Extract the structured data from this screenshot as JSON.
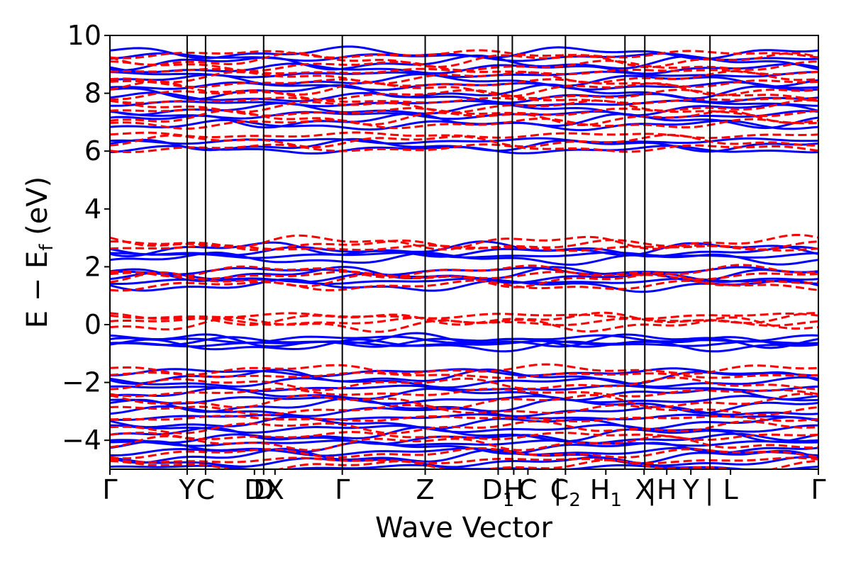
{
  "chart_data": {
    "type": "line",
    "title": "",
    "xlabel": "Wave Vector",
    "ylabel_main": "E − E",
    "ylabel_sub": "f",
    "ylabel_unit": " (eV)",
    "ylim": [
      -5,
      10
    ],
    "yticks": [
      -4,
      -2,
      0,
      2,
      4,
      6,
      8,
      10
    ],
    "ytick_labels": [
      "−4",
      "−2",
      "0",
      "2",
      "4",
      "6",
      "8",
      "10"
    ],
    "kpath": [
      {
        "label": "Γ",
        "x": 0.0
      },
      {
        "label": "Y",
        "x": 0.109
      },
      {
        "label": "C",
        "x": 0.135
      },
      {
        "label": "D",
        "x": 0.204
      },
      {
        "label": "D",
        "x": 0.217
      },
      {
        "label": "X",
        "x": 0.233
      },
      {
        "label": "Γ",
        "x": 0.328
      },
      {
        "label": "Z",
        "x": 0.445
      },
      {
        "label": "D",
        "x": 0.548,
        "sub": "1"
      },
      {
        "label": "H",
        "x": 0.57
      },
      {
        "label": "C",
        "x": 0.59
      },
      {
        "label": "C",
        "x": 0.643,
        "sub": "2"
      },
      {
        "label": "H",
        "x": 0.7,
        "sub": "1"
      },
      {
        "label": "X",
        "x": 0.754
      },
      {
        "label": "H",
        "x": 0.786
      },
      {
        "label": "Y",
        "x": 0.82
      },
      {
        "label": "L",
        "x": 0.876
      },
      {
        "label": "Γ",
        "x": 1.0
      }
    ],
    "kpath_separators": [
      {
        "x": 0.632,
        "text": "|"
      },
      {
        "x": 0.765,
        "text": "|"
      },
      {
        "x": 0.846,
        "text": "|"
      }
    ],
    "vertical_lines_x": [
      0.109,
      0.135,
      0.217,
      0.328,
      0.445,
      0.548,
      0.568,
      0.643,
      0.727,
      0.755,
      0.847
    ],
    "series": [
      {
        "style": "solid",
        "color": "#0000ff",
        "band_levels": [
          -4.95,
          -4.75,
          -4.55,
          -4.4,
          -4.25,
          -4.1,
          -3.95,
          -3.8,
          -3.6,
          -3.4,
          -3.2,
          -3.0,
          -2.8,
          -2.6,
          -2.4,
          -2.2,
          -2.0,
          -1.8,
          -1.65,
          -0.72,
          -0.66,
          -0.6,
          -0.55,
          -0.5,
          1.35,
          1.5,
          1.62,
          1.75,
          1.85,
          2.28,
          2.4,
          2.52,
          2.62,
          6.05,
          6.2,
          6.35,
          6.9,
          7.05,
          7.25,
          7.45,
          7.65,
          7.85,
          8.05,
          8.25,
          8.45,
          8.65,
          8.85,
          9.05,
          9.25,
          9.4
        ]
      },
      {
        "style": "dashed",
        "color": "#ff0000",
        "band_levels": [
          -4.9,
          -4.7,
          -4.45,
          -4.1,
          -3.85,
          -3.55,
          -3.25,
          -2.95,
          -2.65,
          -2.35,
          -2.05,
          -1.75,
          -1.55,
          0.0,
          0.1,
          0.2,
          0.3,
          1.35,
          1.55,
          1.7,
          1.85,
          2.65,
          2.75,
          2.85,
          6.1,
          6.35,
          6.55,
          6.95,
          7.15,
          7.35,
          7.55,
          7.75,
          7.95,
          8.15,
          8.35,
          8.55,
          8.75,
          8.95,
          9.15,
          9.35
        ]
      }
    ],
    "grid": false,
    "legend": "none"
  }
}
